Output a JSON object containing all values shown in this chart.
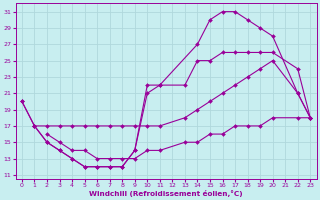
{
  "xlabel": "Windchill (Refroidissement éolien,°C)",
  "background_color": "#c8eef0",
  "grid_color": "#b0d8dc",
  "line_color": "#990099",
  "xlim": [
    -0.5,
    23.5
  ],
  "ylim": [
    10.5,
    32.0
  ],
  "xticks": [
    0,
    1,
    2,
    3,
    4,
    5,
    6,
    7,
    8,
    9,
    10,
    11,
    12,
    13,
    14,
    15,
    16,
    17,
    18,
    19,
    20,
    21,
    22,
    23
  ],
  "yticks": [
    11,
    13,
    15,
    17,
    19,
    21,
    23,
    25,
    27,
    29,
    31
  ],
  "curve1_x": [
    0,
    1,
    2,
    3,
    4,
    5,
    6,
    7,
    8,
    9,
    10,
    11,
    14,
    15,
    16,
    17,
    18,
    19,
    20,
    22,
    23
  ],
  "curve1_y": [
    20,
    17,
    15,
    14,
    13,
    12,
    12,
    12,
    12,
    14,
    22,
    22,
    27,
    30,
    31,
    31,
    30,
    29,
    28,
    21,
    18
  ],
  "curve2_x": [
    0,
    1,
    2,
    3,
    4,
    5,
    6,
    7,
    8,
    9,
    10,
    11,
    13,
    14,
    15,
    16,
    17,
    18,
    19,
    20,
    22,
    23
  ],
  "curve2_y": [
    20,
    17,
    15,
    14,
    13,
    12,
    12,
    12,
    12,
    14,
    21,
    22,
    22,
    25,
    25,
    26,
    26,
    26,
    26,
    26,
    24,
    18
  ],
  "curve3_x": [
    1,
    2,
    3,
    4,
    5,
    6,
    7,
    8,
    9,
    10,
    11,
    13,
    14,
    15,
    16,
    17,
    18,
    19,
    20,
    22,
    23
  ],
  "curve3_y": [
    17,
    17,
    17,
    17,
    17,
    17,
    17,
    17,
    17,
    17,
    17,
    18,
    19,
    20,
    21,
    22,
    23,
    24,
    25,
    21,
    18
  ],
  "curve4_x": [
    2,
    3,
    4,
    5,
    6,
    7,
    8,
    9,
    10,
    11,
    13,
    14,
    15,
    16,
    17,
    18,
    19,
    20,
    22,
    23
  ],
  "curve4_y": [
    16,
    15,
    14,
    14,
    13,
    13,
    13,
    13,
    14,
    14,
    15,
    15,
    16,
    16,
    17,
    17,
    17,
    18,
    18,
    18
  ]
}
